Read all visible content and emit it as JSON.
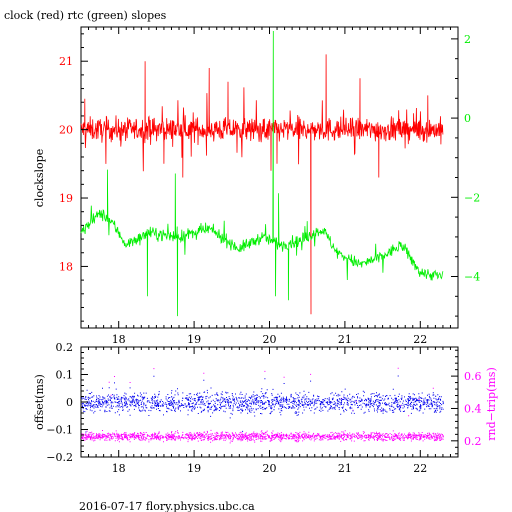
{
  "title": "clock (red) rtc (green) slopes",
  "footer": "2016-07-17  flory.physics.ubc.ca",
  "colors": {
    "red": "#ff0000",
    "green": "#00ee00",
    "blue": "#0000ee",
    "magenta": "#ff00ff",
    "axis": "#000000"
  },
  "chart_data": [
    {
      "type": "line",
      "title": "clock (red) rtc (green) slopes",
      "xlim": [
        17.5,
        22.5
      ],
      "x_ticks": [
        18,
        19,
        20,
        21,
        22
      ],
      "left_axis": {
        "label": "clockslope",
        "ylim": [
          17.1,
          21.5
        ],
        "ticks": [
          18,
          19,
          20,
          21
        ],
        "color": "#ff0000"
      },
      "right_axis": {
        "label": "",
        "ylim": [
          -5.3,
          2.3
        ],
        "ticks": [
          -4,
          -2,
          0,
          2
        ],
        "color": "#00ee00"
      },
      "series": [
        {
          "name": "clock",
          "axis": "left",
          "color": "#ff0000",
          "x_range": [
            17.5,
            22.3
          ],
          "baseline": 20.0,
          "noise": 0.17,
          "spikes": [
            {
              "x": 17.55,
              "y": 20.45
            },
            {
              "x": 18.35,
              "y": 21.0
            },
            {
              "x": 18.6,
              "y": 19.5
            },
            {
              "x": 18.85,
              "y": 19.3
            },
            {
              "x": 19.2,
              "y": 20.9
            },
            {
              "x": 19.45,
              "y": 20.7
            },
            {
              "x": 20.02,
              "y": 19.4
            },
            {
              "x": 20.1,
              "y": 19.5
            },
            {
              "x": 20.55,
              "y": 17.3
            },
            {
              "x": 20.75,
              "y": 21.1
            },
            {
              "x": 21.2,
              "y": 20.75
            },
            {
              "x": 21.45,
              "y": 19.3
            },
            {
              "x": 22.1,
              "y": 20.5
            }
          ]
        },
        {
          "name": "rtc",
          "axis": "right",
          "color": "#00ee00",
          "x_range": [
            17.5,
            22.3
          ],
          "profile": [
            {
              "x": 17.5,
              "y": -2.9
            },
            {
              "x": 17.75,
              "y": -2.4
            },
            {
              "x": 17.9,
              "y": -2.6
            },
            {
              "x": 18.1,
              "y": -3.2
            },
            {
              "x": 18.4,
              "y": -2.9
            },
            {
              "x": 18.8,
              "y": -3.0
            },
            {
              "x": 19.2,
              "y": -2.8
            },
            {
              "x": 19.6,
              "y": -3.3
            },
            {
              "x": 19.9,
              "y": -3.0
            },
            {
              "x": 20.15,
              "y": -3.2
            },
            {
              "x": 20.4,
              "y": -3.1
            },
            {
              "x": 20.7,
              "y": -2.8
            },
            {
              "x": 20.9,
              "y": -3.4
            },
            {
              "x": 21.2,
              "y": -3.7
            },
            {
              "x": 21.5,
              "y": -3.5
            },
            {
              "x": 21.75,
              "y": -3.2
            },
            {
              "x": 22.0,
              "y": -3.9
            },
            {
              "x": 22.3,
              "y": -4.0
            }
          ],
          "noise": 0.15,
          "spikes": [
            {
              "x": 17.85,
              "y": -1.3
            },
            {
              "x": 18.38,
              "y": -4.5
            },
            {
              "x": 18.75,
              "y": -1.4
            },
            {
              "x": 18.78,
              "y": -5.0
            },
            {
              "x": 20.05,
              "y": 2.2
            },
            {
              "x": 20.08,
              "y": -4.5
            },
            {
              "x": 20.12,
              "y": -1.9
            },
            {
              "x": 20.25,
              "y": -4.6
            },
            {
              "x": 20.5,
              "y": -2.6
            }
          ]
        }
      ]
    },
    {
      "type": "scatter",
      "xlim": [
        17.5,
        22.5
      ],
      "x_ticks": [
        18,
        19,
        20,
        21,
        22
      ],
      "left_axis": {
        "label": "offset(ms)",
        "ylim": [
          -0.2,
          0.2
        ],
        "ticks": [
          -0.2,
          -0.1,
          0,
          0.1,
          0.2
        ],
        "tick_labels": [
          "−0.2",
          "−0.1",
          "0",
          "0.1",
          "0.2"
        ],
        "color": "#0000ee"
      },
      "right_axis": {
        "label": "rnd−trip(ms)",
        "ylim": [
          0.1,
          0.78
        ],
        "ticks": [
          0.2,
          0.4,
          0.6
        ],
        "tick_labels": [
          "0.2",
          "0.4",
          "0.6"
        ],
        "color": "#ff00ff"
      },
      "series": [
        {
          "name": "offset",
          "axis": "left",
          "color": "#0000ee",
          "x_range": [
            17.5,
            22.3
          ],
          "center": 0.0,
          "spread": 0.035,
          "point_count": 2600
        },
        {
          "name": "rnd-trip",
          "axis": "right",
          "color": "#ff00ff",
          "x_range": [
            17.5,
            22.3
          ],
          "center": 0.23,
          "spread": 0.025,
          "point_count": 2200
        }
      ]
    }
  ]
}
